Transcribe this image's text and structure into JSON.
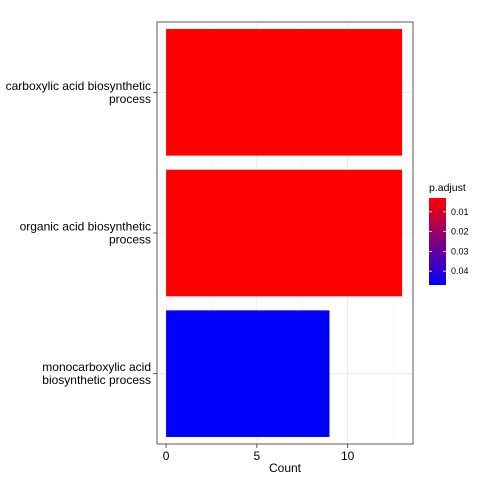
{
  "chart_data": {
    "type": "bar",
    "orientation": "horizontal",
    "categories": [
      "carboxylic acid biosynthetic process",
      "organic acid biosynthetic process",
      "monocarboxylic acid biosynthetic process"
    ],
    "category_label_lines": [
      [
        "carboxylic acid biosynthetic",
        "process"
      ],
      [
        "organic acid biosynthetic",
        "process"
      ],
      [
        "monocarboxylic acid",
        "biosynthetic process"
      ]
    ],
    "values": [
      13,
      13,
      9
    ],
    "bar_colors": [
      "#FF0000",
      "#FF0000",
      "#0000FF"
    ],
    "xlabel": "Count",
    "ylabel": "",
    "xlim": [
      -0.5,
      13.6
    ],
    "x_ticks": [
      0,
      5,
      10
    ],
    "x_tick_labels": [
      "0",
      "5",
      "10"
    ],
    "grid": true,
    "legend": {
      "title": "p.adjust",
      "placement": "right",
      "type": "colorbar",
      "range": [
        0.003,
        0.047
      ],
      "ticks": [
        0.01,
        0.02,
        0.03,
        0.04
      ],
      "tick_labels": [
        "0.01",
        "0.02",
        "0.03",
        "0.04"
      ],
      "low_color": "#FF0000",
      "high_color": "#0000FF"
    }
  }
}
